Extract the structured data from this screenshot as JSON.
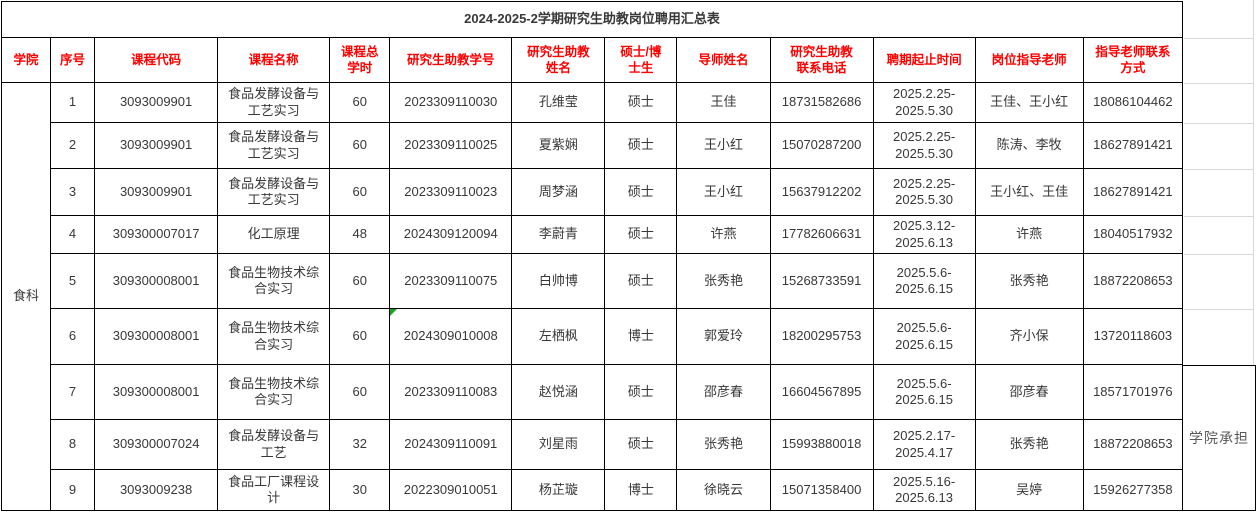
{
  "title": "2024-2025-2学期研究生助教岗位聘用汇总表",
  "college_label": "食科",
  "side_note": "学院承担",
  "headers": {
    "college": "学院",
    "seq": "序号",
    "course_code": "课程代码",
    "course_name": "课程名称",
    "hours": "课程总\n学时",
    "ta_id": "研究生助教学号",
    "ta_name": "研究生助教\n姓名",
    "degree": "硕士/博\n士生",
    "advisor": "导师姓名",
    "ta_phone": "研究生助教\n联系电话",
    "period": "聘期起止时间",
    "supervisor": "岗位指导老师",
    "supervisor_phone": "指导老师联系\n方式"
  },
  "rows": [
    {
      "seq": "1",
      "course_code": "3093009901",
      "course_name": "食品发酵设备与\n工艺实习",
      "hours": "60",
      "ta_id": "2023309110030",
      "ta_name": "孔维莹",
      "degree": "硕士",
      "advisor": "王佳",
      "ta_phone": "18731582686",
      "period": "2025.2.25-\n2025.5.30",
      "supervisor": "王佳、王小红",
      "supervisor_phone": "18086104462"
    },
    {
      "seq": "2",
      "course_code": "3093009901",
      "course_name": "食品发酵设备与\n工艺实习",
      "hours": "60",
      "ta_id": "2023309110025",
      "ta_name": "夏紫娴",
      "degree": "硕士",
      "advisor": "王小红",
      "ta_phone": "15070287200",
      "period": "2025.2.25-\n2025.5.30",
      "supervisor": "陈涛、李牧",
      "supervisor_phone": "18627891421"
    },
    {
      "seq": "3",
      "course_code": "3093009901",
      "course_name": "食品发酵设备与\n工艺实习",
      "hours": "60",
      "ta_id": "2023309110023",
      "ta_name": "周梦涵",
      "degree": "硕士",
      "advisor": "王小红",
      "ta_phone": "15637912202",
      "period": "2025.2.25-\n2025.5.30",
      "supervisor": "王小红、王佳",
      "supervisor_phone": "18627891421"
    },
    {
      "seq": "4",
      "course_code": "309300007017",
      "course_name": "化工原理",
      "hours": "48",
      "ta_id": "2024309120094",
      "ta_name": "李蔚青",
      "degree": "硕士",
      "advisor": "许燕",
      "ta_phone": "17782606631",
      "period": "2025.3.12-\n2025.6.13",
      "supervisor": "许燕",
      "supervisor_phone": "18040517932"
    },
    {
      "seq": "5",
      "course_code": "309300008001",
      "course_name": "食品生物技术综\n合实习",
      "hours": "60",
      "ta_id": "2023309110075",
      "ta_name": "白帅博",
      "degree": "硕士",
      "advisor": "张秀艳",
      "ta_phone": "15268733591",
      "period": "2025.5.6-\n2025.6.15",
      "supervisor": "张秀艳",
      "supervisor_phone": "18872208653"
    },
    {
      "seq": "6",
      "course_code": "309300008001",
      "course_name": "食品生物技术综\n合实习",
      "hours": "60",
      "ta_id": "2024309010008",
      "ta_name": "左栖枫",
      "degree": "博士",
      "advisor": "郭爱玲",
      "ta_phone": "18200295753",
      "period": "2025.5.6-\n2025.6.15",
      "supervisor": "齐小保",
      "supervisor_phone": "13720118603"
    },
    {
      "seq": "7",
      "course_code": "309300008001",
      "course_name": "食品生物技术综\n合实习",
      "hours": "60",
      "ta_id": "2023309110083",
      "ta_name": "赵悦涵",
      "degree": "硕士",
      "advisor": "邵彦春",
      "ta_phone": "16604567895",
      "period": "2025.5.6-\n2025.6.15",
      "supervisor": "邵彦春",
      "supervisor_phone": "18571701976"
    },
    {
      "seq": "8",
      "course_code": "309300007024",
      "course_name": "食品发酵设备与\n工艺",
      "hours": "32",
      "ta_id": "2024309110091",
      "ta_name": "刘星雨",
      "degree": "硕士",
      "advisor": "张秀艳",
      "ta_phone": "15993880018",
      "period": "2025.2.17-\n2025.4.17",
      "supervisor": "张秀艳",
      "supervisor_phone": "18872208653"
    },
    {
      "seq": "9",
      "course_code": "3093009238",
      "course_name": "食品工厂课程设\n计",
      "hours": "30",
      "ta_id": "2022309010051",
      "ta_name": "杨芷璇",
      "degree": "博士",
      "advisor": "徐晓云",
      "ta_phone": "15071358400",
      "period": "2025.5.16-\n2025.6.13",
      "supervisor": "吴婷",
      "supervisor_phone": "15926277358"
    }
  ],
  "green_flag": {
    "row": 6,
    "column": "ta_id"
  },
  "colors": {
    "header_text": "#ff0000",
    "body_text": "#383838",
    "border": "#000000",
    "gridline": "#d9d9d9",
    "title_text": "#000000",
    "side_note_text": "#595959",
    "flag_green": "#1fa01f"
  }
}
